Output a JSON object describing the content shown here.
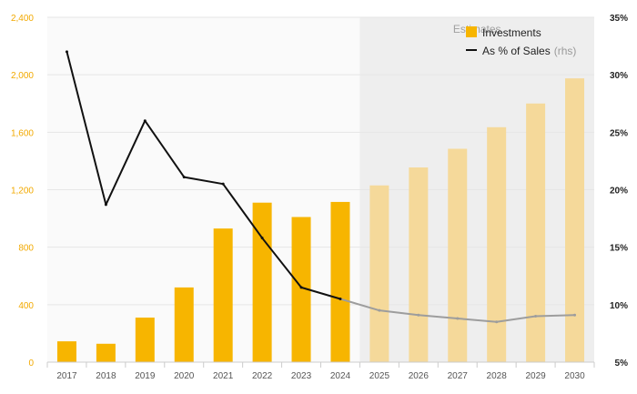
{
  "chart_data": {
    "type": "bar+line",
    "categories": [
      "2017",
      "2018",
      "2019",
      "2020",
      "2021",
      "2022",
      "2023",
      "2024",
      "2025",
      "2026",
      "2027",
      "2028",
      "2029",
      "2030"
    ],
    "series": [
      {
        "name": "Investments",
        "axis": "left",
        "values": [
          145,
          128,
          310,
          520,
          930,
          1110,
          1010,
          1115,
          1230,
          1355,
          1485,
          1635,
          1800,
          1975
        ]
      },
      {
        "name": "As % of Sales",
        "axis": "right",
        "values": [
          32.0,
          18.7,
          26.0,
          21.1,
          20.5,
          15.8,
          11.5,
          10.5,
          9.5,
          9.1,
          8.8,
          8.5,
          9.0,
          9.1
        ]
      }
    ],
    "actual_count": 8,
    "estimates_label": "Estimates",
    "legend": [
      {
        "label": "Investments",
        "suffix": ""
      },
      {
        "label": "As % of Sales",
        "suffix": "(rhs)"
      }
    ],
    "y_left": {
      "min": 0,
      "max": 2400,
      "ticks": [
        0,
        400,
        800,
        1200,
        1600,
        2000,
        2400
      ],
      "tick_labels": [
        "0",
        "400",
        "800",
        "1,200",
        "1,600",
        "2,000",
        "2,400"
      ]
    },
    "y_right": {
      "min": 5,
      "max": 35,
      "ticks": [
        5,
        10,
        15,
        20,
        25,
        30,
        35
      ],
      "tick_labels": [
        "5%",
        "10%",
        "15%",
        "20%",
        "25%",
        "30%",
        "35%"
      ]
    },
    "grid": true,
    "colors": {
      "bar_actual": "#f7b500",
      "bar_estimate": "#f5d99a",
      "line_actual": "#111111",
      "line_estimate": "#9d9d9d",
      "estimate_shade": "#eeeeee",
      "plot_bg": "#fafafa",
      "left_tick": "#f2a900",
      "grid": "#e6e6e6"
    }
  }
}
